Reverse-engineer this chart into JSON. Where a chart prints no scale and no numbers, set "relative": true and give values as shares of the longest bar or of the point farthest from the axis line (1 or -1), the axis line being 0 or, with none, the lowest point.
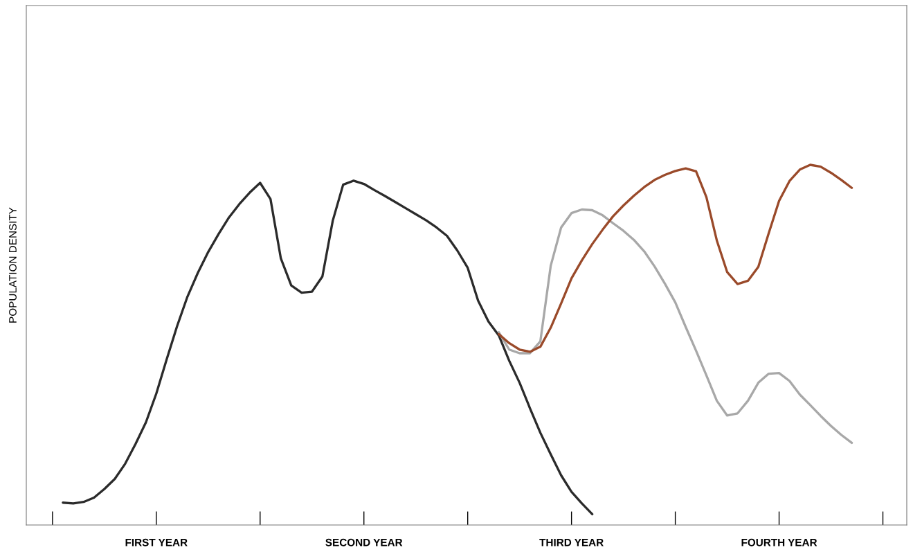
{
  "chart_data": {
    "type": "line",
    "relative": true,
    "ylabel": "POPULATION DENSITY",
    "categories": [
      null,
      null,
      null,
      null,
      null,
      null,
      null,
      null,
      null,
      null,
      "FIRST YEAR",
      null,
      null,
      null,
      null,
      null,
      null,
      null,
      null,
      null,
      null,
      null,
      null,
      null,
      null,
      null,
      null,
      null,
      null,
      null,
      "SECOND YEAR",
      null,
      null,
      null,
      null,
      null,
      null,
      null,
      null,
      null,
      null,
      null,
      null,
      null,
      null,
      null,
      null,
      null,
      null,
      null,
      "THIRD YEAR",
      null,
      null,
      null,
      null,
      null,
      null,
      null,
      null,
      null,
      null,
      null,
      null,
      null,
      null,
      null,
      null,
      null,
      null,
      null,
      "FOURTH YEAR",
      null,
      null,
      null,
      null,
      null,
      null,
      null,
      null,
      null,
      null
    ],
    "tick_labels": "x",
    "grid": false,
    "legend": false,
    "marker": "none",
    "line_style": "solid",
    "series": [
      {
        "color": "#2b2b2b",
        "values": [
          null,
          0.062,
          0.06,
          0.064,
          0.076,
          0.1,
          0.128,
          0.17,
          0.225,
          0.285,
          0.365,
          0.46,
          0.552,
          0.634,
          0.7,
          0.758,
          0.808,
          0.854,
          0.891,
          0.923,
          0.95,
          0.905,
          0.74,
          0.665,
          0.645,
          0.648,
          0.69,
          0.845,
          0.945,
          0.956,
          0.947,
          0.93,
          0.914,
          0.897,
          0.88,
          0.863,
          0.846,
          0.826,
          0.803,
          0.762,
          0.714,
          0.623,
          0.565,
          0.526,
          0.456,
          0.395,
          0.324,
          0.256,
          0.196,
          0.138,
          0.092,
          0.06,
          0.03,
          null,
          null,
          null,
          null,
          null,
          null,
          null,
          null,
          null,
          null,
          null,
          null,
          null,
          null,
          null,
          null,
          null,
          null,
          null,
          null,
          null,
          null,
          null,
          null,
          null,
          null,
          null,
          null
        ]
      },
      {
        "color": "#a8a8a8",
        "values": [
          null,
          null,
          null,
          null,
          null,
          null,
          null,
          null,
          null,
          null,
          null,
          null,
          null,
          null,
          null,
          null,
          null,
          null,
          null,
          null,
          null,
          null,
          null,
          null,
          null,
          null,
          null,
          null,
          null,
          null,
          null,
          null,
          null,
          null,
          null,
          null,
          null,
          null,
          null,
          null,
          null,
          null,
          null,
          0.535,
          0.487,
          0.477,
          0.477,
          0.51,
          0.72,
          0.826,
          0.866,
          0.876,
          0.874,
          0.86,
          0.838,
          0.817,
          0.792,
          0.76,
          0.718,
          0.67,
          0.618,
          0.55,
          0.484,
          0.415,
          0.345,
          0.304,
          0.31,
          0.345,
          0.395,
          0.42,
          0.422,
          0.4,
          0.362,
          0.333,
          0.303,
          0.275,
          0.25,
          0.228,
          null,
          null,
          null
        ]
      },
      {
        "color": "#9a4a2a",
        "values": [
          null,
          null,
          null,
          null,
          null,
          null,
          null,
          null,
          null,
          null,
          null,
          null,
          null,
          null,
          null,
          null,
          null,
          null,
          null,
          null,
          null,
          null,
          null,
          null,
          null,
          null,
          null,
          null,
          null,
          null,
          null,
          null,
          null,
          null,
          null,
          null,
          null,
          null,
          null,
          null,
          null,
          null,
          null,
          0.53,
          0.505,
          0.487,
          0.481,
          0.495,
          0.548,
          0.615,
          0.685,
          0.735,
          0.78,
          0.82,
          0.857,
          0.887,
          0.914,
          0.938,
          0.958,
          0.972,
          0.983,
          0.99,
          0.982,
          0.91,
          0.79,
          0.702,
          0.669,
          0.678,
          0.717,
          0.81,
          0.9,
          0.955,
          0.987,
          1.0,
          0.995,
          0.978,
          0.958,
          0.936,
          null,
          null,
          null
        ]
      }
    ]
  }
}
